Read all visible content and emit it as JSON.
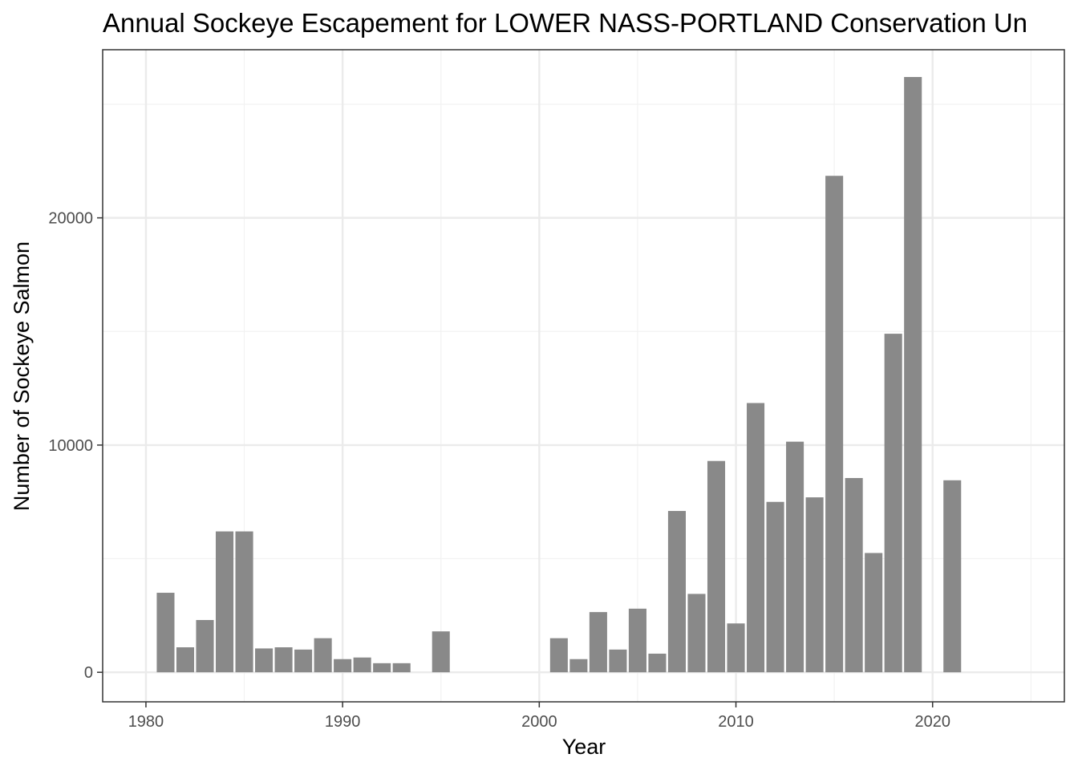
{
  "chart_data": {
    "type": "bar",
    "title": "Annual Sockeye Escapement for LOWER NASS-PORTLAND Conservation Un",
    "xlabel": "Year",
    "ylabel": "Number of Sockeye Salmon",
    "xlim": [
      1977.8,
      2026.7
    ],
    "ylim": [
      -1300,
      27400
    ],
    "x_ticks": [
      1980,
      1990,
      2000,
      2010,
      2020
    ],
    "x_tick_labels": [
      "1980",
      "1990",
      "2000",
      "2010",
      "2020"
    ],
    "y_ticks": [
      0,
      10000,
      20000
    ],
    "y_tick_labels": [
      "0",
      "10000",
      "20000"
    ],
    "grid": true,
    "bar_color": "#898989",
    "x": [
      1981,
      1982,
      1983,
      1984,
      1985,
      1986,
      1987,
      1988,
      1989,
      1990,
      1991,
      1992,
      1993,
      1995,
      2001,
      2002,
      2003,
      2004,
      2005,
      2006,
      2007,
      2008,
      2009,
      2010,
      2011,
      2012,
      2013,
      2014,
      2015,
      2016,
      2017,
      2018,
      2019,
      2021
    ],
    "values": [
      3500,
      1100,
      2300,
      6200,
      6200,
      1050,
      1100,
      1000,
      1500,
      580,
      650,
      400,
      400,
      1800,
      1500,
      580,
      2650,
      1000,
      2800,
      820,
      7100,
      3450,
      9300,
      2150,
      11850,
      7500,
      10150,
      7700,
      21850,
      8550,
      5250,
      14900,
      26200,
      8450
    ]
  },
  "colors": {
    "panel_border": "#333333",
    "grid_major": "#ebebeb",
    "grid_minor": "#f2f2f2",
    "background": "#ffffff"
  }
}
